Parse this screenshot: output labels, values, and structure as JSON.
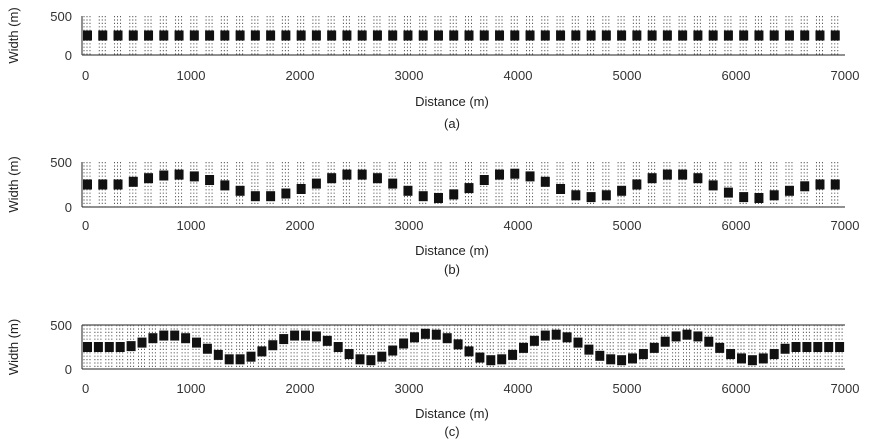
{
  "chart_data": [
    {
      "type": "scatter",
      "panel_label": "(a)",
      "xlabel": "Distance (m)",
      "ylabel": "Width (m)",
      "xlim": [
        0,
        7000
      ],
      "ylim": [
        0,
        500
      ],
      "x_ticks": [
        0,
        1000,
        2000,
        3000,
        4000,
        5000,
        6000,
        7000
      ],
      "x_tick_labels": [
        "0",
        "1000",
        "2000",
        "3000",
        "4000",
        "5000",
        "6000",
        "7000"
      ],
      "y_ticks": [
        0,
        500
      ],
      "y_tick_labels": [
        "0",
        "500"
      ],
      "sections": {
        "x": [
          0,
          140,
          280,
          420,
          560,
          700,
          840,
          980,
          1120,
          1260,
          1400,
          1540,
          1680,
          1820,
          1960,
          2100,
          2240,
          2380,
          2520,
          2660,
          2800,
          2940,
          3080,
          3220,
          3360,
          3500,
          3640,
          3780,
          3920,
          4060,
          4200,
          4340,
          4480,
          4620,
          4760,
          4900,
          5040,
          5180,
          5320,
          5460,
          5600,
          5740,
          5880,
          6020,
          6160,
          6300,
          6440,
          6580,
          6720,
          6860
        ],
        "center": [
          250,
          250,
          250,
          250,
          250,
          250,
          250,
          250,
          250,
          250,
          250,
          250,
          250,
          250,
          250,
          250,
          250,
          250,
          250,
          250,
          250,
          250,
          250,
          250,
          250,
          250,
          250,
          250,
          250,
          250,
          250,
          250,
          250,
          250,
          250,
          250,
          250,
          250,
          250,
          250,
          250,
          250,
          250,
          250,
          250,
          250,
          250,
          250,
          250,
          250
        ]
      }
    },
    {
      "type": "scatter",
      "panel_label": "(b)",
      "xlabel": "Distance (m)",
      "ylabel": "Width (m)",
      "xlim": [
        0,
        7000
      ],
      "ylim": [
        0,
        500
      ],
      "x_ticks": [
        0,
        1000,
        2000,
        3000,
        4000,
        5000,
        6000,
        7000
      ],
      "x_tick_labels": [
        "0",
        "1000",
        "2000",
        "3000",
        "4000",
        "5000",
        "6000",
        "7000"
      ],
      "y_ticks": [
        0,
        500
      ],
      "y_tick_labels": [
        "0",
        "500"
      ],
      "sections": {
        "x": [
          0,
          140,
          280,
          420,
          560,
          700,
          840,
          980,
          1120,
          1260,
          1400,
          1540,
          1680,
          1820,
          1960,
          2100,
          2240,
          2380,
          2520,
          2660,
          2800,
          2940,
          3080,
          3220,
          3360,
          3500,
          3640,
          3780,
          3920,
          4060,
          4200,
          4340,
          4480,
          4620,
          4760,
          4900,
          5040,
          5180,
          5320,
          5460,
          5600,
          5740,
          5880,
          6020,
          6160,
          6300,
          6440,
          6580,
          6720,
          6860
        ],
        "center": [
          250,
          250,
          250,
          280,
          320,
          350,
          360,
          340,
          300,
          240,
          180,
          120,
          120,
          150,
          200,
          260,
          320,
          360,
          360,
          320,
          260,
          180,
          120,
          100,
          140,
          210,
          300,
          360,
          370,
          340,
          280,
          200,
          130,
          110,
          130,
          180,
          250,
          320,
          360,
          360,
          320,
          240,
          160,
          110,
          100,
          130,
          180,
          230,
          250,
          250
        ]
      }
    },
    {
      "type": "scatter",
      "panel_label": "(c)",
      "xlabel": "Distance (m)",
      "ylabel": "Width (m)",
      "xlim": [
        0,
        7000
      ],
      "ylim": [
        0,
        500
      ],
      "x_ticks": [
        0,
        1000,
        2000,
        3000,
        4000,
        5000,
        6000,
        7000
      ],
      "x_tick_labels": [
        "0",
        "1000",
        "2000",
        "3000",
        "4000",
        "5000",
        "6000",
        "7000"
      ],
      "y_ticks": [
        0,
        500
      ],
      "y_tick_labels": [
        "0",
        "500"
      ],
      "sections": {
        "x": [
          0,
          100,
          200,
          300,
          400,
          500,
          600,
          700,
          800,
          900,
          1000,
          1100,
          1200,
          1300,
          1400,
          1500,
          1600,
          1700,
          1800,
          1900,
          2000,
          2100,
          2200,
          2300,
          2400,
          2500,
          2600,
          2700,
          2800,
          2900,
          3000,
          3100,
          3200,
          3300,
          3400,
          3500,
          3600,
          3700,
          3800,
          3900,
          4000,
          4100,
          4200,
          4300,
          4400,
          4500,
          4600,
          4700,
          4800,
          4900,
          5000,
          5100,
          5200,
          5300,
          5400,
          5500,
          5600,
          5700,
          5800,
          5900,
          6000,
          6100,
          6200,
          6300,
          6400,
          6500,
          6600,
          6700,
          6800,
          6900
        ],
        "center": [
          250,
          250,
          250,
          250,
          260,
          300,
          350,
          380,
          380,
          350,
          300,
          230,
          160,
          110,
          110,
          140,
          200,
          270,
          340,
          380,
          380,
          370,
          320,
          250,
          170,
          110,
          100,
          140,
          210,
          290,
          360,
          400,
          390,
          350,
          280,
          200,
          130,
          100,
          110,
          160,
          240,
          320,
          380,
          390,
          360,
          300,
          220,
          150,
          110,
          100,
          120,
          170,
          240,
          310,
          370,
          390,
          370,
          310,
          240,
          170,
          120,
          100,
          120,
          170,
          230,
          250,
          250,
          250,
          250,
          250
        ]
      }
    }
  ]
}
